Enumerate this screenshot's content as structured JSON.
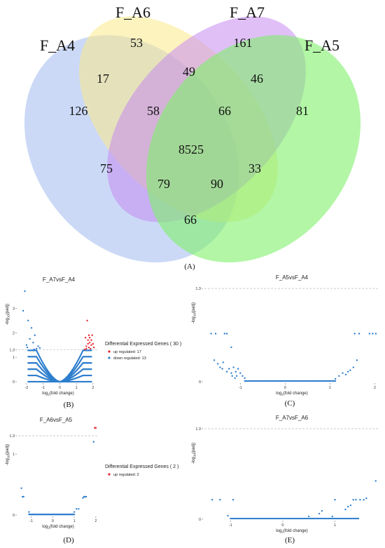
{
  "colors": {
    "F_A4": "#a8bff0",
    "F_A6": "#fbe98a",
    "F_A7": "#c78af0",
    "F_A5": "#7ef06a",
    "up": "#e4262f",
    "down": "#2f7fce",
    "threshold": "#bbbbbb"
  },
  "chart_data": [
    {
      "type": "venn",
      "panel": "(A)",
      "sets": [
        "F_A4",
        "F_A6",
        "F_A7",
        "F_A5"
      ],
      "regions": [
        {
          "sets": [
            "F_A4"
          ],
          "value": 126
        },
        {
          "sets": [
            "F_A6"
          ],
          "value": 53
        },
        {
          "sets": [
            "F_A7"
          ],
          "value": 161
        },
        {
          "sets": [
            "F_A5"
          ],
          "value": 81
        },
        {
          "sets": [
            "F_A4",
            "F_A6"
          ],
          "value": 17
        },
        {
          "sets": [
            "F_A6",
            "F_A7"
          ],
          "value": 49
        },
        {
          "sets": [
            "F_A7",
            "F_A5"
          ],
          "value": 46
        },
        {
          "sets": [
            "F_A4",
            "F_A6",
            "F_A7"
          ],
          "value": 58
        },
        {
          "sets": [
            "F_A6",
            "F_A7",
            "F_A5"
          ],
          "value": 66
        },
        {
          "sets": [
            "F_A4",
            "F_A6",
            "F_A7",
            "F_A5"
          ],
          "value": 8525
        },
        {
          "sets": [
            "F_A4",
            "F_A7"
          ],
          "value": 75
        },
        {
          "sets": [
            "F_A6",
            "F_A5"
          ],
          "value": 33
        },
        {
          "sets": [
            "F_A4",
            "F_A7",
            "F_A5"
          ],
          "value": 79
        },
        {
          "sets": [
            "F_A4",
            "F_A6",
            "F_A5"
          ],
          "value": 90
        },
        {
          "sets": [
            "F_A4",
            "F_A5"
          ],
          "value": 66
        }
      ]
    },
    {
      "type": "scatter",
      "panel": "(B)",
      "title": "F_A7vsF_A4",
      "xlabel": "log2(fold change)",
      "ylabel": "-log10(padj)",
      "xlim": [
        -2.5,
        2.3
      ],
      "ylim": [
        0,
        3.9
      ],
      "xticks": [
        -2,
        -1,
        0,
        1,
        2
      ],
      "yticks": [
        0,
        1,
        1.3,
        2,
        3
      ],
      "threshold": 1.3,
      "legend": {
        "title": "Differential Expressed Genes ( 30 )",
        "items": [
          "up regulated: 17",
          "down regulated: 13"
        ],
        "placement": "right"
      },
      "up_points": [
        [
          1.65,
          2.5
        ],
        [
          1.75,
          1.9
        ],
        [
          1.55,
          1.8
        ],
        [
          1.7,
          1.7
        ],
        [
          1.8,
          1.6
        ],
        [
          1.9,
          1.5
        ],
        [
          1.6,
          1.45
        ],
        [
          1.75,
          1.4
        ],
        [
          2.0,
          1.55
        ],
        [
          1.85,
          1.35
        ],
        [
          1.95,
          1.9
        ],
        [
          1.7,
          1.55
        ],
        [
          1.6,
          1.35
        ],
        [
          1.5,
          1.32
        ],
        [
          1.9,
          1.7
        ],
        [
          1.8,
          1.8
        ],
        [
          2.05,
          1.4
        ]
      ],
      "down_points": [
        [
          -2.1,
          3.7
        ],
        [
          -2.2,
          2.9
        ],
        [
          -1.9,
          2.5
        ],
        [
          -1.7,
          2.2
        ],
        [
          -1.5,
          1.9
        ],
        [
          -1.8,
          1.75
        ],
        [
          -1.6,
          1.6
        ],
        [
          -1.3,
          1.45
        ],
        [
          -1.95,
          1.4
        ],
        [
          -1.4,
          1.35
        ],
        [
          -2.0,
          1.5
        ],
        [
          -1.2,
          1.38
        ],
        [
          -1.55,
          1.32
        ]
      ]
    },
    {
      "type": "scatter",
      "panel": "(C)",
      "title": "F_A5vsF_A4",
      "xlabel": "log2(fold change)",
      "ylabel": "-log10(padj)",
      "xlim": [
        -1.8,
        2.1
      ],
      "ylim": [
        0,
        1.35
      ],
      "xticks": [
        -1,
        0,
        1,
        2
      ],
      "yticks": [
        0,
        1.3
      ],
      "threshold": 1.3,
      "points": [
        [
          -1.65,
          0.67
        ],
        [
          -1.55,
          0.67
        ],
        [
          -1.35,
          0.67
        ],
        [
          -1.3,
          0.67
        ],
        [
          -1.2,
          0.48
        ],
        [
          -1.58,
          0.3
        ],
        [
          -1.5,
          0.25
        ],
        [
          -1.45,
          0.2
        ],
        [
          -1.4,
          0.18
        ],
        [
          -1.38,
          0.27
        ],
        [
          -1.3,
          0.14
        ],
        [
          -1.25,
          0.18
        ],
        [
          -1.2,
          0.12
        ],
        [
          -1.15,
          0.2
        ],
        [
          -1.1,
          0.14
        ],
        [
          -1.08,
          0.08
        ],
        [
          -1.05,
          0.18
        ],
        [
          -1.0,
          0.12
        ],
        [
          -0.95,
          0.08
        ],
        [
          -0.9,
          0.05
        ],
        [
          -1.18,
          0.08
        ],
        [
          -1.12,
          0.05
        ],
        [
          1.12,
          0.04
        ],
        [
          1.2,
          0.08
        ],
        [
          1.28,
          0.12
        ],
        [
          1.35,
          0.1
        ],
        [
          1.4,
          0.14
        ],
        [
          1.45,
          0.16
        ],
        [
          1.52,
          0.2
        ],
        [
          1.6,
          0.3
        ],
        [
          1.55,
          0.67
        ],
        [
          1.65,
          0.67
        ],
        [
          1.88,
          0.67
        ],
        [
          1.95,
          0.67
        ],
        [
          2.02,
          0.67
        ]
      ]
    },
    {
      "type": "scatter",
      "panel": "(D)",
      "title": "F_A6vsF_A5",
      "xlabel": "log2(fold change)",
      "ylabel": "-log10(padj)",
      "xlim": [
        -1.6,
        2.1
      ],
      "ylim": [
        0,
        1.45
      ],
      "xticks": [
        -1,
        0,
        1,
        2
      ],
      "yticks": [
        0,
        1,
        1.3
      ],
      "threshold": 1.3,
      "legend": {
        "title": "Differential Expressed Genes ( 2 )",
        "items": [
          "up regulated: 2"
        ],
        "placement": "right"
      },
      "up_points": [
        [
          1.95,
          1.43
        ],
        [
          2.0,
          1.43
        ]
      ],
      "down_points": [
        [
          -1.45,
          0.44
        ],
        [
          -1.4,
          0.3
        ],
        [
          -1.35,
          0.3
        ],
        [
          -1.1,
          0.05
        ],
        [
          1.0,
          0.05
        ],
        [
          1.1,
          0.1
        ],
        [
          1.2,
          0.1
        ],
        [
          1.4,
          0.28
        ],
        [
          1.45,
          0.3
        ],
        [
          1.5,
          0.3
        ],
        [
          1.55,
          0.3
        ],
        [
          1.9,
          1.2
        ]
      ]
    },
    {
      "type": "scatter",
      "panel": "(E)",
      "title": "F_A7vsF_A6",
      "xlabel": "log2(fold change)",
      "ylabel": "-log10(padj)",
      "xlim": [
        -1.5,
        1.85
      ],
      "ylim": [
        0,
        1.35
      ],
      "xticks": [
        -1,
        0,
        1
      ],
      "yticks": [
        0,
        1.3
      ],
      "threshold": 1.3,
      "points": [
        [
          -1.35,
          0.28
        ],
        [
          -1.2,
          0.28
        ],
        [
          -0.95,
          0.28
        ],
        [
          -1.05,
          0.05
        ],
        [
          0.5,
          0.04
        ],
        [
          0.7,
          0.08
        ],
        [
          0.75,
          0.12
        ],
        [
          0.95,
          0.04
        ],
        [
          1.0,
          0.28
        ],
        [
          1.2,
          0.14
        ],
        [
          1.25,
          0.18
        ],
        [
          1.3,
          0.2
        ],
        [
          1.35,
          0.28
        ],
        [
          1.4,
          0.28
        ],
        [
          1.48,
          0.28
        ],
        [
          1.55,
          0.28
        ],
        [
          1.6,
          0.3
        ],
        [
          1.78,
          0.55
        ]
      ]
    }
  ]
}
